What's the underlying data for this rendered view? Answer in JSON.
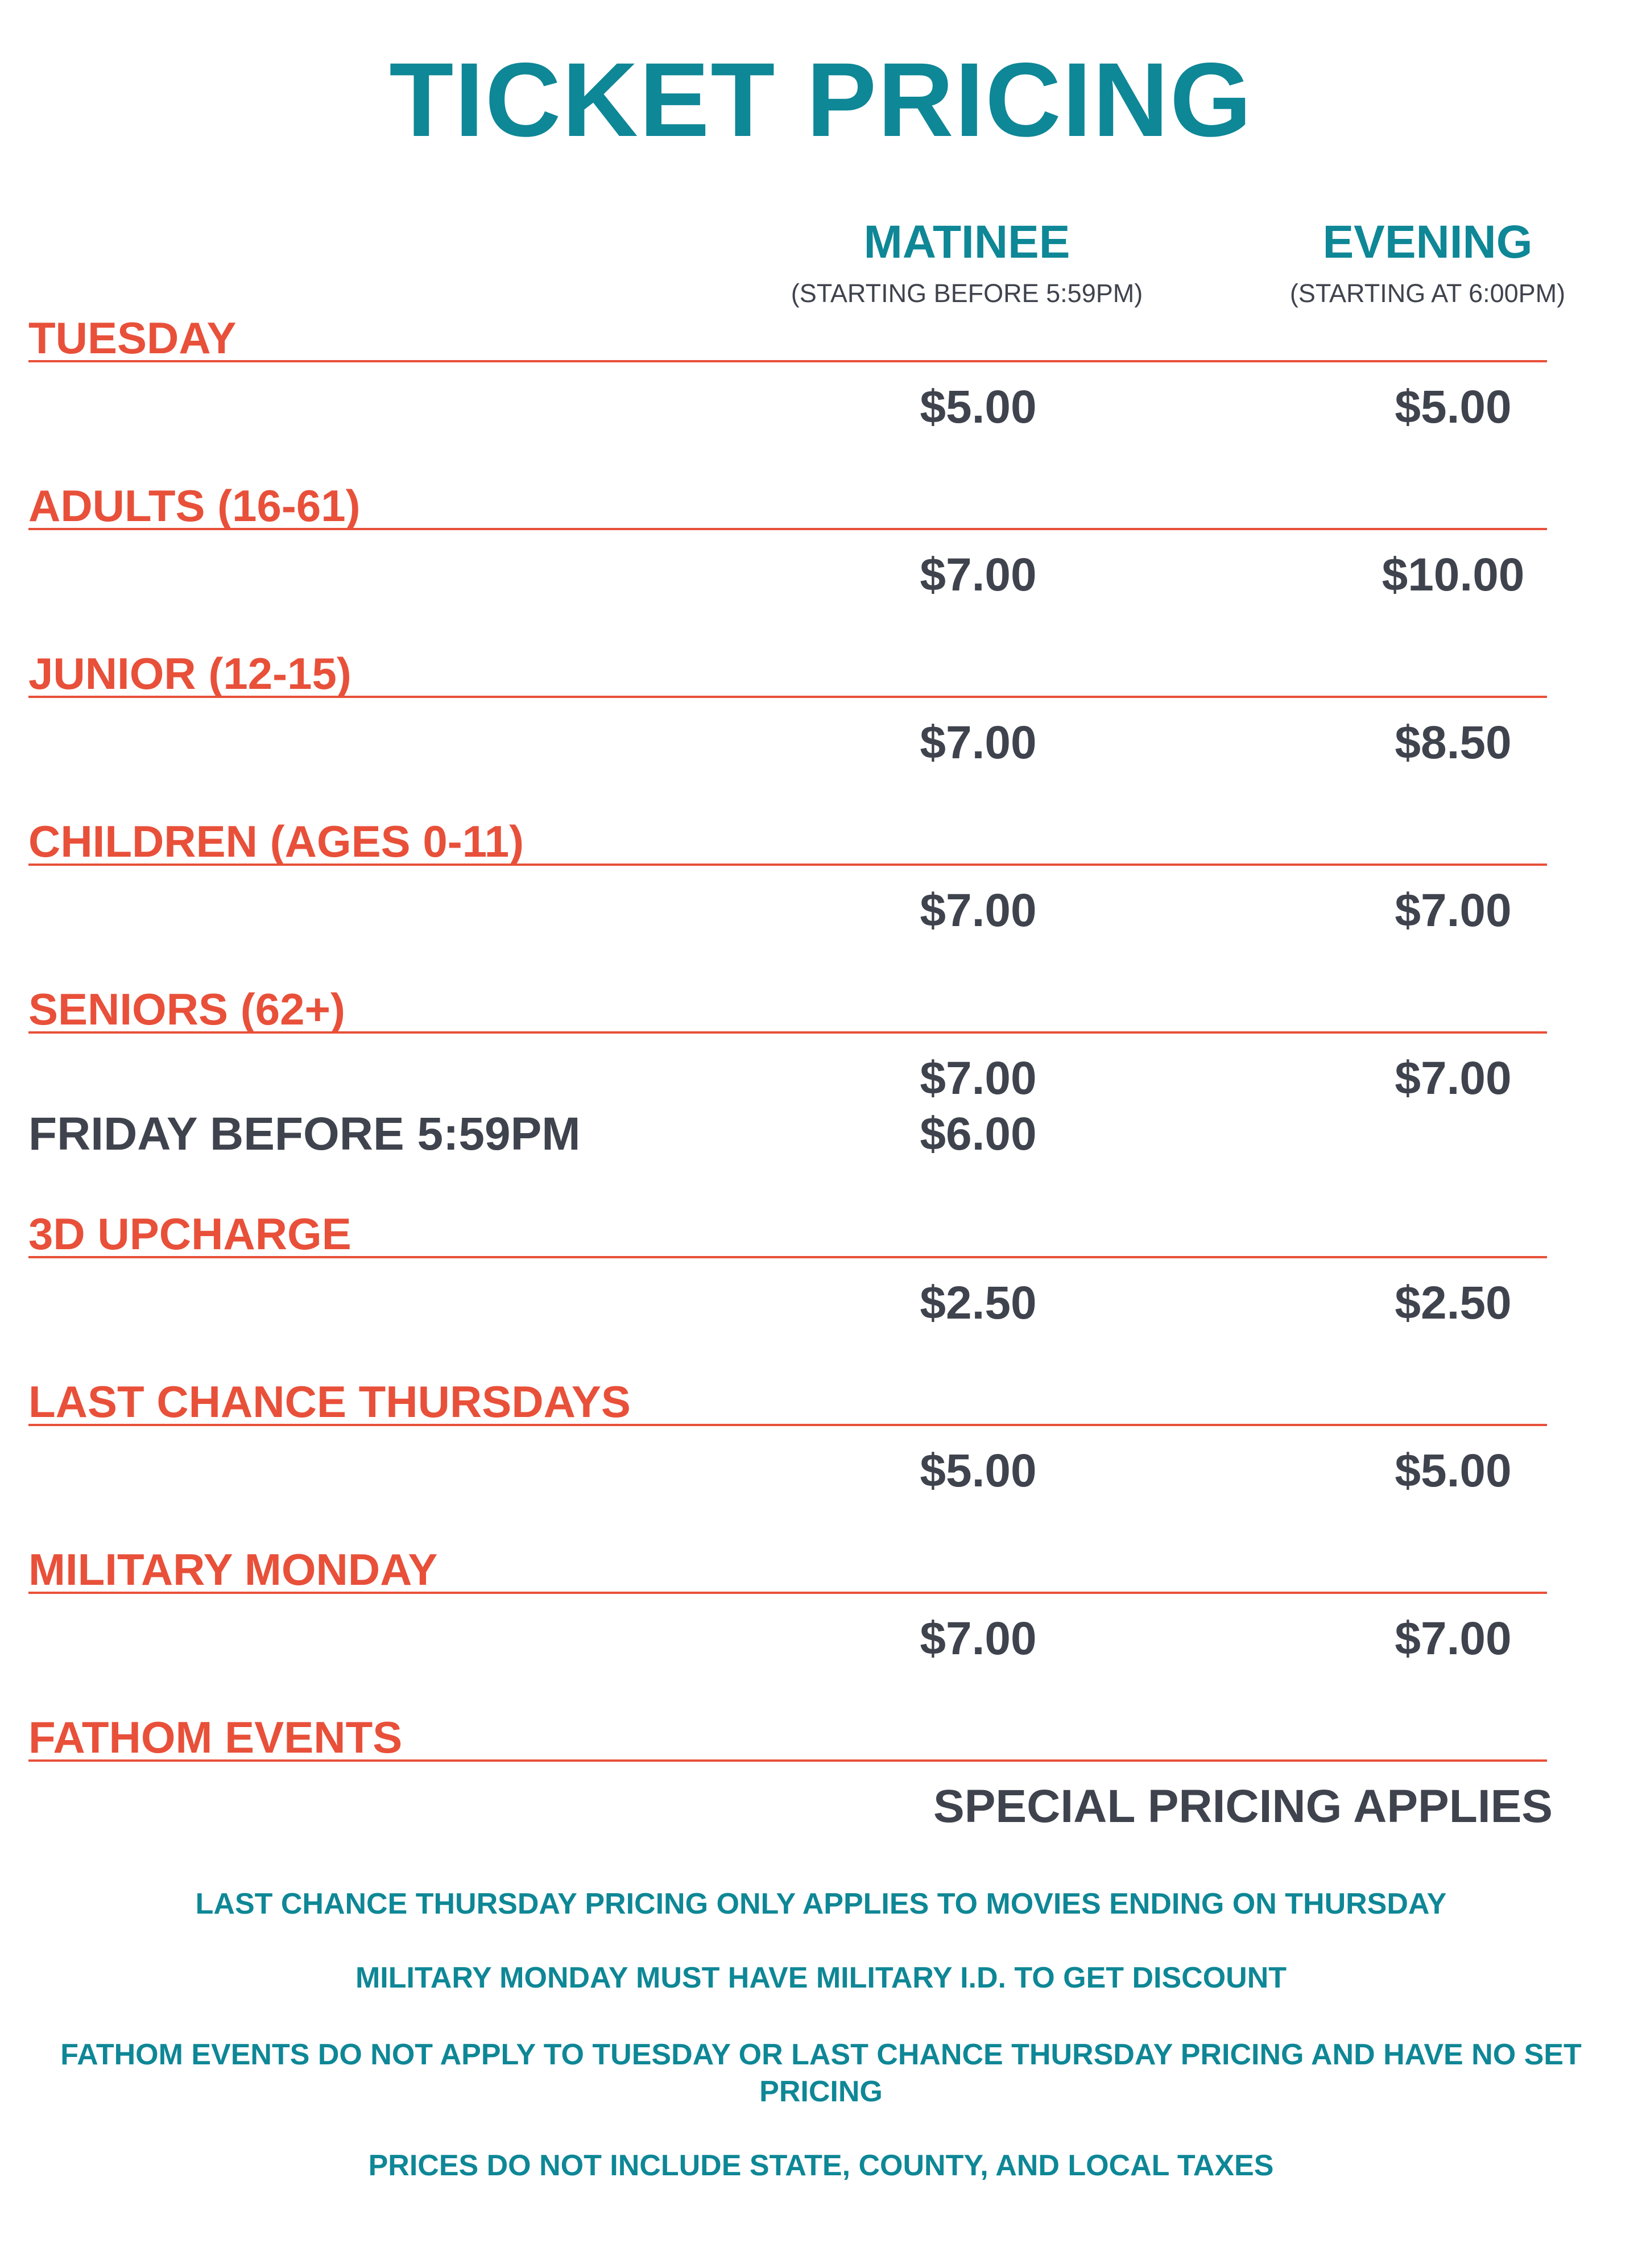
{
  "title": "TICKET PRICING",
  "columns": {
    "matinee": {
      "label": "MATINEE",
      "sub": "(STARTING BEFORE 5:59PM)"
    },
    "evening": {
      "label": "EVENING",
      "sub": "(STARTING AT 6:00PM)"
    }
  },
  "rows": [
    {
      "category": "TUESDAY",
      "matinee": "$5.00",
      "evening": "$5.00"
    },
    {
      "category": "ADULTS (16-61)",
      "matinee": "$7.00",
      "evening": "$10.00"
    },
    {
      "category": "JUNIOR (12-15)",
      "matinee": "$7.00",
      "evening": "$8.50"
    },
    {
      "category": "CHILDREN (AGES 0-11)",
      "matinee": "$7.00",
      "evening": "$7.00"
    },
    {
      "category": "SENIORS (62+)",
      "matinee": "$7.00",
      "evening": "$7.00",
      "extra_label": "FRIDAY BEFORE 5:59PM",
      "extra_matinee": "$6.00"
    },
    {
      "category": "3D UPCHARGE",
      "matinee": "$2.50",
      "evening": "$2.50"
    },
    {
      "category": "LAST CHANCE THURSDAYS",
      "matinee": "$5.00",
      "evening": "$5.00"
    },
    {
      "category": "MILITARY MONDAY",
      "matinee": "$7.00",
      "evening": "$7.00"
    },
    {
      "category": "FATHOM EVENTS",
      "special": "SPECIAL PRICING APPLIES"
    }
  ],
  "notes": [
    "LAST CHANCE THURSDAY PRICING ONLY APPLIES TO MOVIES ENDING ON THURSDAY",
    "MILITARY MONDAY MUST HAVE MILITARY I.D. TO GET DISCOUNT",
    "FATHOM EVENTS DO NOT APPLY TO TUESDAY OR LAST CHANCE THURSDAY PRICING AND HAVE NO SET PRICING",
    "PRICES DO NOT INCLUDE STATE, COUNTY, AND LOCAL TAXES"
  ],
  "colors": {
    "teal": "#0e8796",
    "coral": "#e8503a",
    "dark": "#3f434d"
  }
}
